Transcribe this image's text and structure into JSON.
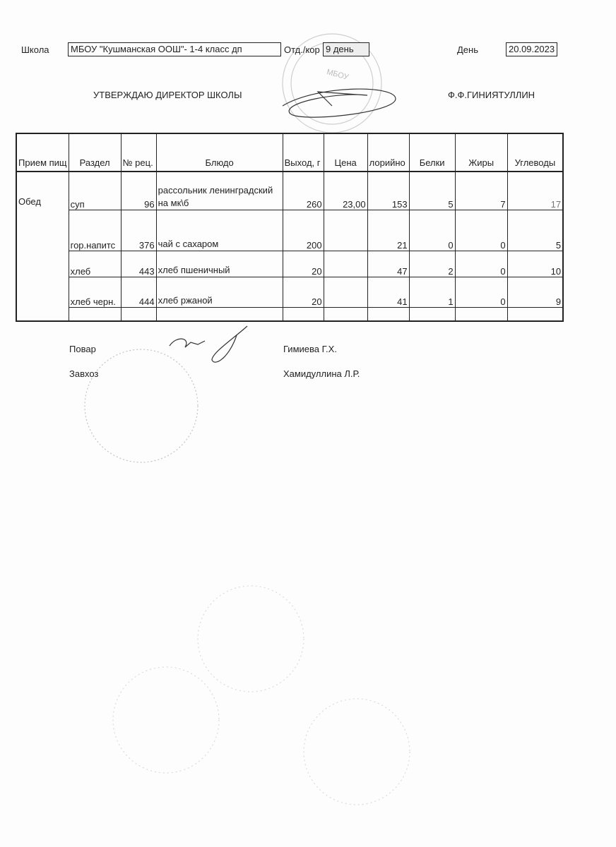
{
  "header": {
    "school_label": "Школа",
    "school_value": "МБОУ \"Кушманская ООШ\"- 1-4 класс дп",
    "dept_label": "Отд./кор",
    "dept_value": "9 день",
    "day_label": "День",
    "day_value": "20.09.2023",
    "approve_text": "УТВЕРЖДАЮ ДИРЕКТОР  ШКОЛЫ",
    "director_name": "Ф.Ф.ГИНИЯТУЛЛИН"
  },
  "table": {
    "columns": [
      "Прием пищ",
      "Раздел",
      "№ рец.",
      "Блюдо",
      "Выход, г",
      "Цена",
      "лорийно",
      "Белки",
      "Жиры",
      "Углеводы"
    ],
    "meal": "Обед",
    "rows": [
      {
        "section": "суп",
        "recipe": "96",
        "dish": "рассольник ленинградский на мк\\б",
        "yield": "260",
        "price": "23,00",
        "kcal": "153",
        "protein": "5",
        "fat": "7",
        "carbs": "17"
      },
      {
        "section": "гор.напитс",
        "recipe": "376",
        "dish": "чай с сахаром",
        "yield": "200",
        "price": "",
        "kcal": "21",
        "protein": "0",
        "fat": "0",
        "carbs": "5"
      },
      {
        "section": "хлеб",
        "recipe": "443",
        "dish": "хлеб пшеничный",
        "yield": "20",
        "price": "",
        "kcal": "47",
        "protein": "2",
        "fat": "0",
        "carbs": "10"
      },
      {
        "section": "хлеб черн.",
        "recipe": "444",
        "dish": "хлеб ржаной",
        "yield": "20",
        "price": "",
        "kcal": "41",
        "protein": "1",
        "fat": "0",
        "carbs": "9"
      }
    ]
  },
  "footer": {
    "cook_label": "Повар",
    "cook_name": "Гимиева Г.Х.",
    "storekeeper_label": "Завхоз",
    "storekeeper_name": "Хамидуллина Л.Р."
  },
  "stamp_text": "МБОУ"
}
